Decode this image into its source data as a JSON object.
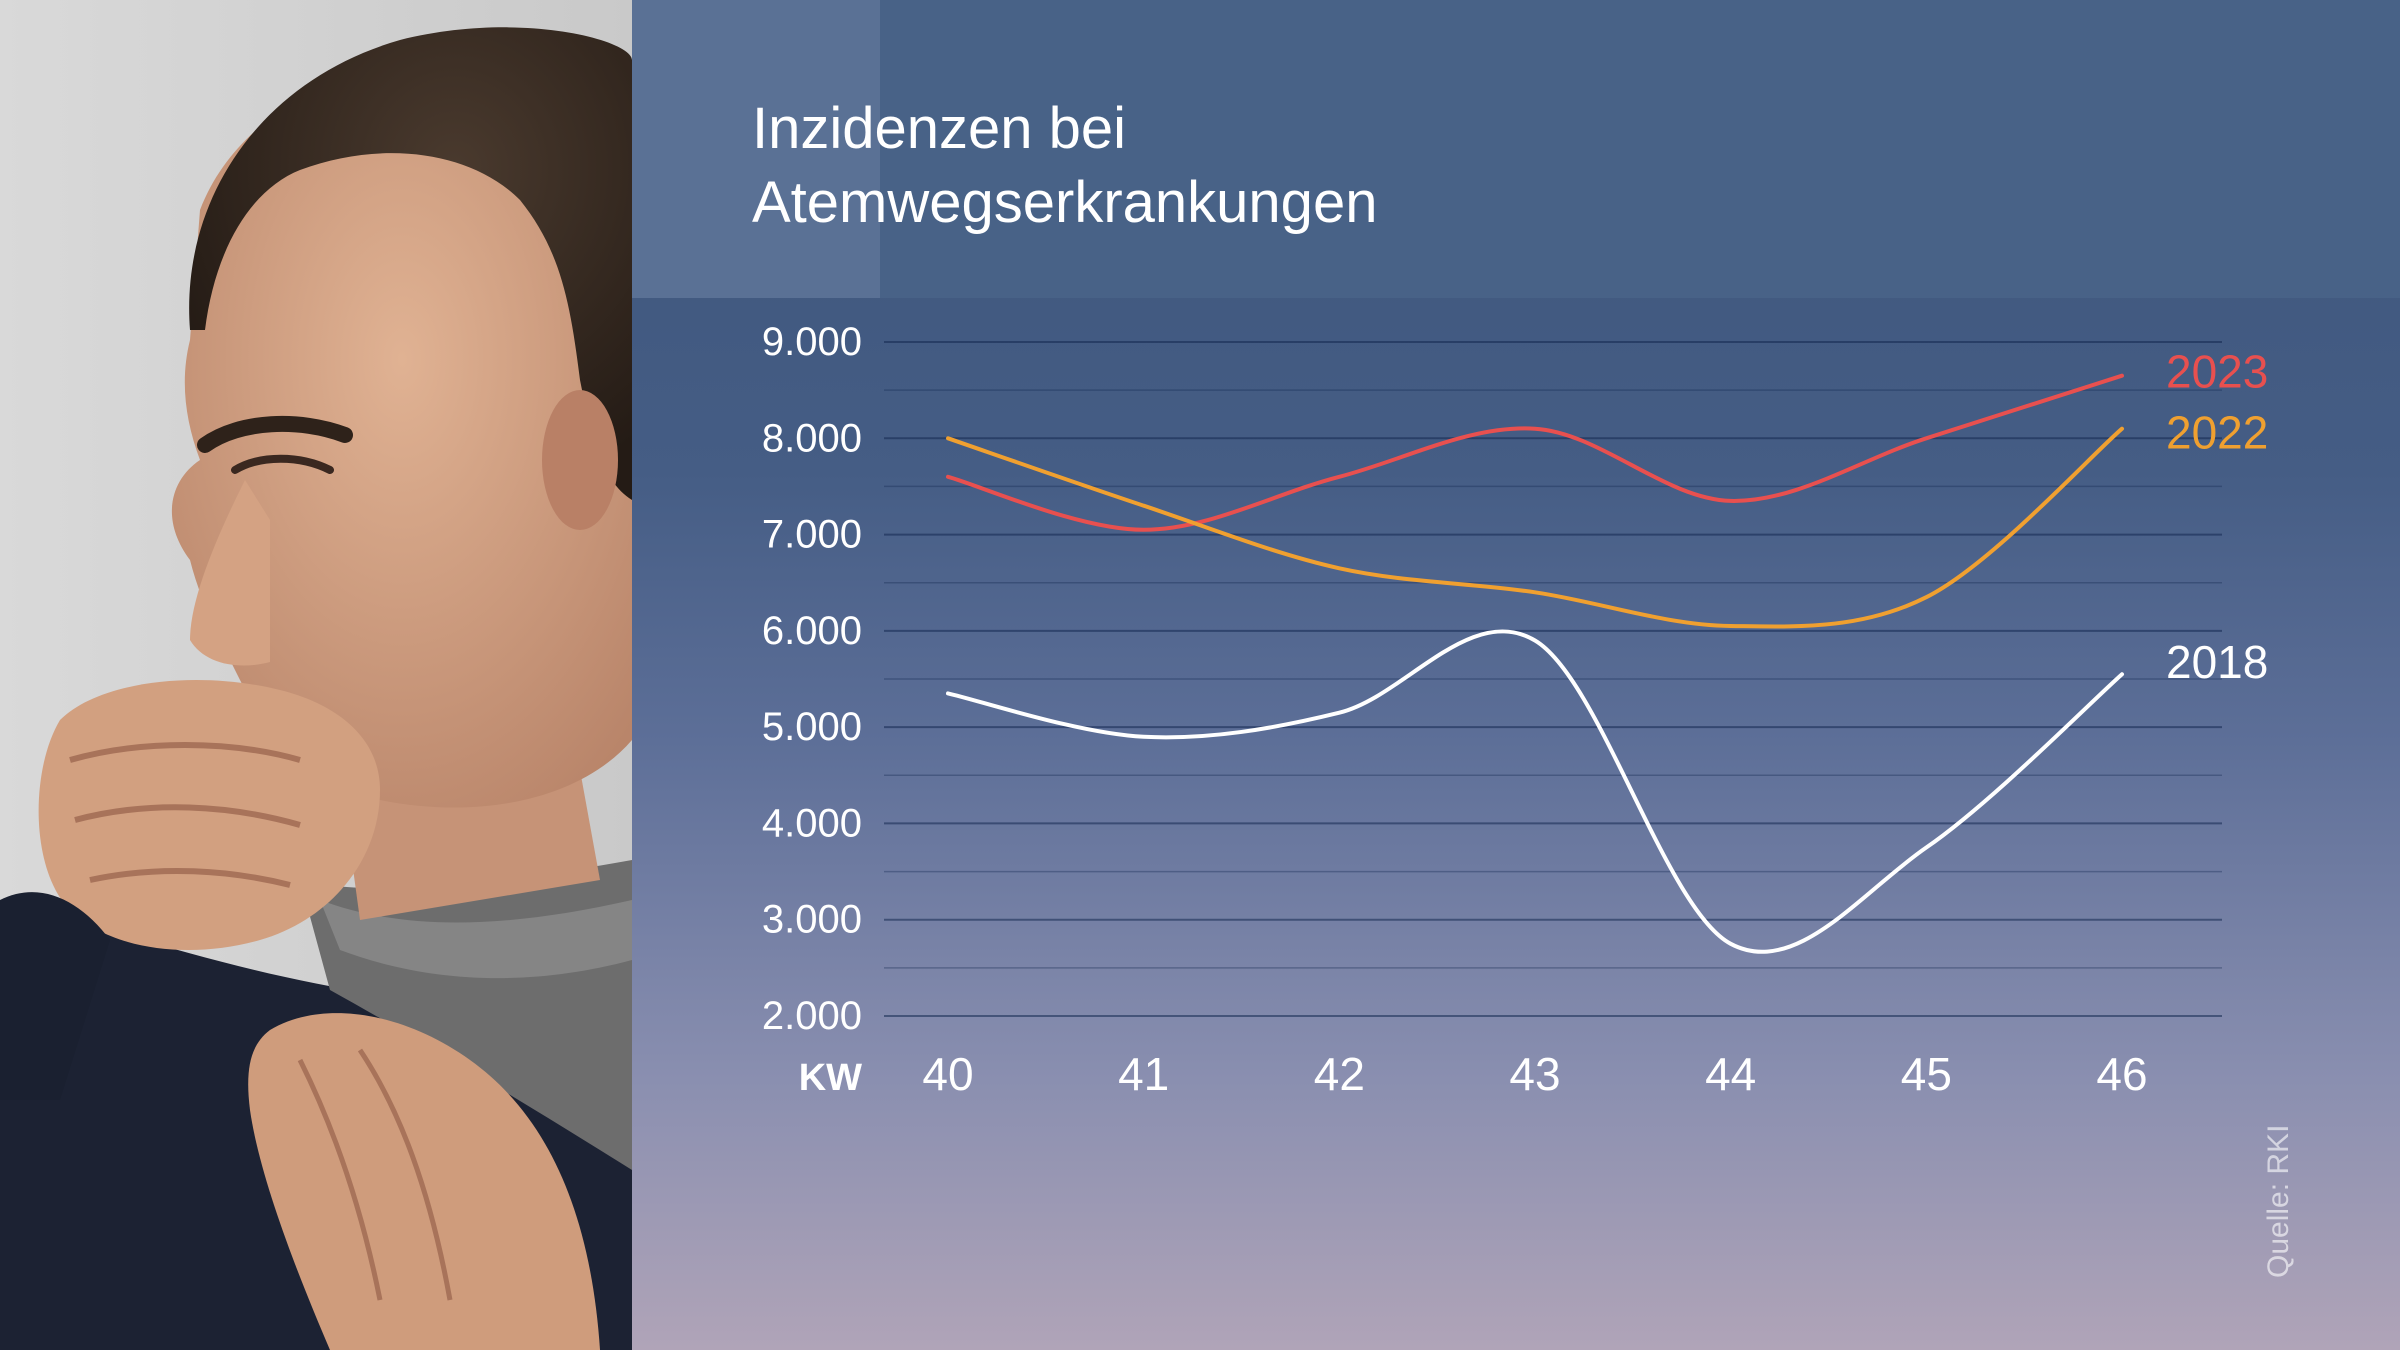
{
  "chart_data": {
    "type": "line",
    "title": "Inzidenzen bei\nAtemwegserkrankungen",
    "xlabel": "KW",
    "ylabel": "",
    "x": [
      40,
      41,
      42,
      43,
      44,
      45,
      46
    ],
    "ylim": [
      2000,
      9000
    ],
    "y_tick_values": [
      2000,
      3000,
      4000,
      5000,
      6000,
      7000,
      8000,
      9000
    ],
    "y_tick_labels": [
      "2.000",
      "3.000",
      "4.000",
      "5.000",
      "6.000",
      "7.000",
      "8.000",
      "9.000"
    ],
    "minor_gridlines": true,
    "legend": "end-of-line labels",
    "series": [
      {
        "name": "2023",
        "color": "#e8504f",
        "values": [
          7600,
          7050,
          7600,
          8100,
          7350,
          8000,
          8650
        ]
      },
      {
        "name": "2022",
        "color": "#f0a030",
        "values": [
          8000,
          7300,
          6650,
          6400,
          6050,
          6350,
          8100
        ]
      },
      {
        "name": "2018",
        "color": "#ffffff",
        "values": [
          5350,
          4900,
          5150,
          5900,
          2750,
          3750,
          5550
        ]
      }
    ],
    "source": "Quelle: RKI"
  }
}
